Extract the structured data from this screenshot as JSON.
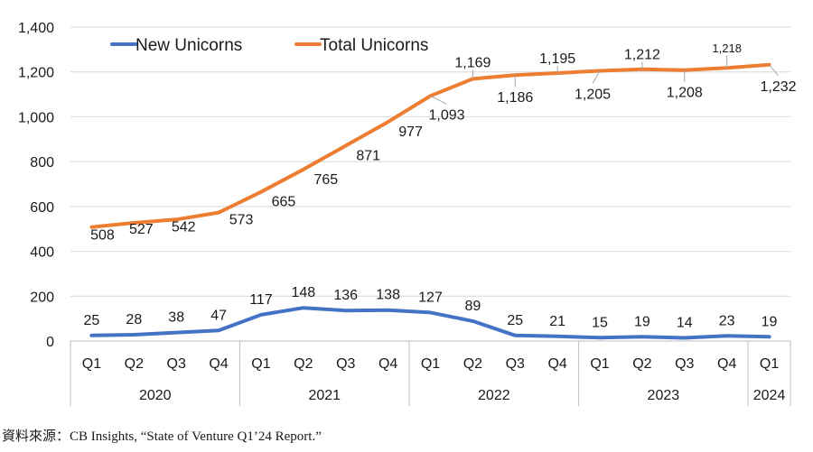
{
  "chart_data": {
    "type": "line",
    "categories": [
      "Q1",
      "Q2",
      "Q3",
      "Q4",
      "Q1",
      "Q2",
      "Q3",
      "Q4",
      "Q1",
      "Q2",
      "Q3",
      "Q4",
      "Q1",
      "Q2",
      "Q3",
      "Q4",
      "Q1"
    ],
    "year_groups": [
      {
        "label": "2020",
        "span": 4
      },
      {
        "label": "2021",
        "span": 4
      },
      {
        "label": "2022",
        "span": 4
      },
      {
        "label": "2023",
        "span": 4
      },
      {
        "label": "2024",
        "span": 1
      }
    ],
    "ylim": [
      0,
      1400
    ],
    "yticks": [
      0,
      200,
      400,
      600,
      800,
      1000,
      1200,
      1400
    ],
    "ytick_labels": [
      "0",
      "200",
      "400",
      "600",
      "800",
      "1,000",
      "1,200",
      "1,400"
    ],
    "grid": true,
    "legend_position": "top-left",
    "series": [
      {
        "name": "New Unicorns",
        "color": "#4472c4",
        "values": [
          25,
          28,
          38,
          47,
          117,
          148,
          136,
          138,
          127,
          89,
          25,
          21,
          15,
          19,
          14,
          23,
          19
        ],
        "labels": [
          "25",
          "28",
          "38",
          "47",
          "117",
          "148",
          "136",
          "138",
          "127",
          "89",
          "25",
          "21",
          "15",
          "19",
          "14",
          "23",
          "19"
        ]
      },
      {
        "name": "Total Unicorns",
        "color": "#ed7d31",
        "values": [
          508,
          527,
          542,
          573,
          665,
          765,
          871,
          977,
          1093,
          1169,
          1186,
          1195,
          1205,
          1212,
          1208,
          1218,
          1232
        ],
        "labels": [
          "508",
          "527",
          "542",
          "573",
          "665",
          "765",
          "871",
          "977",
          "1,093",
          "1,169",
          "1,186",
          "1,195",
          "1,205",
          "1,212",
          "1,208",
          "1,218",
          "1,232"
        ]
      }
    ]
  },
  "source_text": "資料來源：CB Insights, “State of Venture Q1’24 Report.”"
}
